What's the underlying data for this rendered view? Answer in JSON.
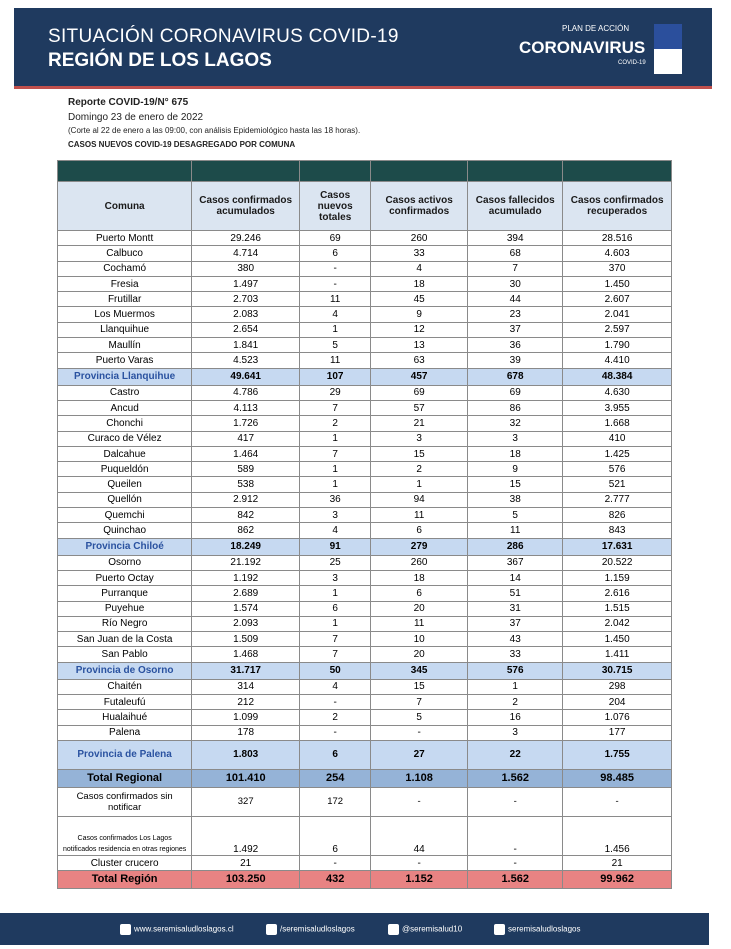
{
  "header": {
    "title": "SITUACIÓN CORONAVIRUS COVID-19",
    "subtitle": "REGIÓN DE LOS LAGOS",
    "logo_top": "PLAN DE ACCIÓN",
    "logo_main": "CORONAVIRUS",
    "logo_bottom": "COVID-19"
  },
  "report": {
    "number": "Reporte COVID-19/N° 675",
    "date": "Domingo 23 de enero de 2022",
    "note": "(Corte al  22 de enero a las 09:00, con análisis Epidemiológico hasta las 18 horas).",
    "section": "CASOS NUEVOS COVID-19 DESAGREGADO POR COMUNA"
  },
  "table": {
    "columns": [
      "Comuna",
      "Casos confirmados acumulados",
      "Casos nuevos totales",
      "Casos activos confirmados",
      "Casos fallecidos acumulado",
      "Casos confirmados recuperados"
    ],
    "groups": [
      {
        "rows": [
          [
            "Puerto Montt",
            "29.246",
            "69",
            "260",
            "394",
            "28.516"
          ],
          [
            "Calbuco",
            "4.714",
            "6",
            "33",
            "68",
            "4.603"
          ],
          [
            "Cochamó",
            "380",
            "-",
            "4",
            "7",
            "370"
          ],
          [
            "Fresia",
            "1.497",
            "-",
            "18",
            "30",
            "1.450"
          ],
          [
            "Frutillar",
            "2.703",
            "11",
            "45",
            "44",
            "2.607"
          ],
          [
            "Los Muermos",
            "2.083",
            "4",
            "9",
            "23",
            "2.041"
          ],
          [
            "Llanquihue",
            "2.654",
            "1",
            "12",
            "37",
            "2.597"
          ],
          [
            "Maullín",
            "1.841",
            "5",
            "13",
            "36",
            "1.790"
          ],
          [
            "Puerto Varas",
            "4.523",
            "11",
            "63",
            "39",
            "4.410"
          ]
        ],
        "total": [
          "Provincia Llanquihue",
          "49.641",
          "107",
          "457",
          "678",
          "48.384"
        ]
      },
      {
        "rows": [
          [
            "Castro",
            "4.786",
            "29",
            "69",
            "69",
            "4.630"
          ],
          [
            "Ancud",
            "4.113",
            "7",
            "57",
            "86",
            "3.955"
          ],
          [
            "Chonchi",
            "1.726",
            "2",
            "21",
            "32",
            "1.668"
          ],
          [
            "Curaco de Vélez",
            "417",
            "1",
            "3",
            "3",
            "410"
          ],
          [
            "Dalcahue",
            "1.464",
            "7",
            "15",
            "18",
            "1.425"
          ],
          [
            "Puqueldón",
            "589",
            "1",
            "2",
            "9",
            "576"
          ],
          [
            "Queilen",
            "538",
            "1",
            "1",
            "15",
            "521"
          ],
          [
            "Quellón",
            "2.912",
            "36",
            "94",
            "38",
            "2.777"
          ],
          [
            "Quemchi",
            "842",
            "3",
            "11",
            "5",
            "826"
          ],
          [
            "Quinchao",
            "862",
            "4",
            "6",
            "11",
            "843"
          ]
        ],
        "total": [
          "Provincia Chiloé",
          "18.249",
          "91",
          "279",
          "286",
          "17.631"
        ]
      },
      {
        "rows": [
          [
            "Osorno",
            "21.192",
            "25",
            "260",
            "367",
            "20.522"
          ],
          [
            "Puerto Octay",
            "1.192",
            "3",
            "18",
            "14",
            "1.159"
          ],
          [
            "Purranque",
            "2.689",
            "1",
            "6",
            "51",
            "2.616"
          ],
          [
            "Puyehue",
            "1.574",
            "6",
            "20",
            "31",
            "1.515"
          ],
          [
            "Río Negro",
            "2.093",
            "1",
            "11",
            "37",
            "2.042"
          ],
          [
            "San Juan de la Costa",
            "1.509",
            "7",
            "10",
            "43",
            "1.450"
          ],
          [
            "San Pablo",
            "1.468",
            "7",
            "20",
            "33",
            "1.411"
          ]
        ],
        "total": [
          "Provincia de Osorno",
          "31.717",
          "50",
          "345",
          "576",
          "30.715"
        ]
      },
      {
        "rows": [
          [
            "Chaitén",
            "314",
            "4",
            "15",
            "1",
            "298"
          ],
          [
            "Futaleufú",
            "212",
            "-",
            "7",
            "2",
            "204"
          ],
          [
            "Hualaihué",
            "1.099",
            "2",
            "5",
            "16",
            "1.076"
          ],
          [
            "Palena",
            "178",
            "-",
            "-",
            "3",
            "177"
          ]
        ],
        "total": [
          "Provincia de Palena",
          "1.803",
          "6",
          "27",
          "22",
          "1.755"
        ]
      }
    ],
    "total_regional": [
      "Total Regional",
      "101.410",
      "254",
      "1.108",
      "1.562",
      "98.485"
    ],
    "extra_rows": [
      [
        "Casos confirmados sin notificar",
        "327",
        "172",
        "-",
        "-",
        "-"
      ],
      [
        "Casos confirmados Los  Lagos notificados  residencia en otras regiones",
        "1.492",
        "6",
        "44",
        "-",
        "1.456"
      ],
      [
        "Cluster crucero",
        "21",
        "-",
        "-",
        "-",
        "21"
      ]
    ],
    "grand_total": [
      "Total Región",
      "103.250",
      "432",
      "1.152",
      "1.562",
      "99.962"
    ]
  },
  "footer": [
    "www.seremisaludloslagos.cl",
    "/seremisaludloslagos",
    "@seremisalud10",
    "seremisaludloslagos"
  ]
}
